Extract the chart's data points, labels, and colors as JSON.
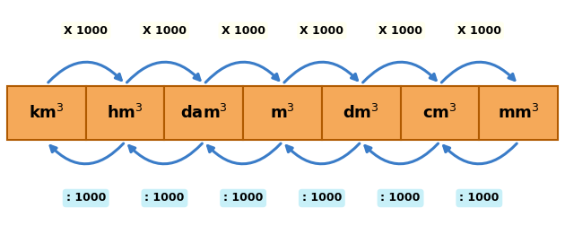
{
  "units_base": [
    "km",
    "hm",
    "dam",
    "m",
    "dm",
    "cm",
    "mm"
  ],
  "n_units": 7,
  "multiply_label": "X 1000",
  "divide_label": ": 1000",
  "bar_facecolor": "#F5A959",
  "bar_edgecolor": "#B05A00",
  "multiply_box_color": "#FFFFF0",
  "divide_box_color": "#C8F0F8",
  "arrow_color": "#3A7CC8",
  "text_color": "#000000",
  "background_color": "#FFFFFF",
  "fig_width": 6.3,
  "fig_height": 2.61,
  "dpi": 100
}
